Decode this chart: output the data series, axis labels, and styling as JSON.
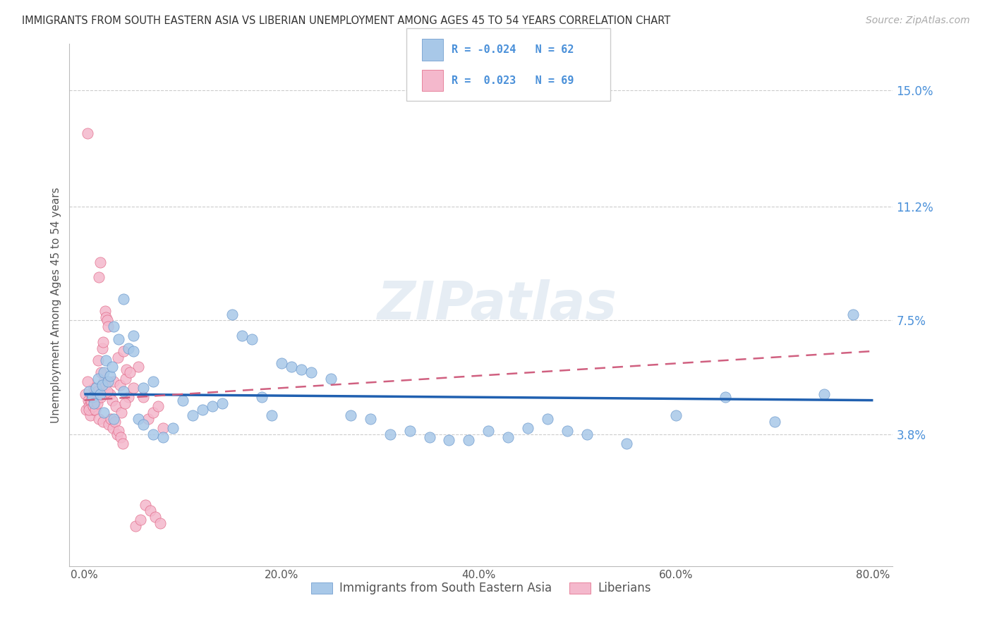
{
  "title": "IMMIGRANTS FROM SOUTH EASTERN ASIA VS LIBERIAN UNEMPLOYMENT AMONG AGES 45 TO 54 YEARS CORRELATION CHART",
  "source": "Source: ZipAtlas.com",
  "ylabel": "Unemployment Among Ages 45 to 54 years",
  "xticklabels": [
    "0.0%",
    "20.0%",
    "40.0%",
    "60.0%",
    "80.0%"
  ],
  "xticks": [
    0.0,
    20.0,
    40.0,
    60.0,
    80.0
  ],
  "ytick_labels": [
    "3.8%",
    "7.5%",
    "11.2%",
    "15.0%"
  ],
  "ytick_vals": [
    3.8,
    7.5,
    11.2,
    15.0
  ],
  "ymin": -0.5,
  "ymax": 16.5,
  "xmin": -1.5,
  "xmax": 82.0,
  "blue_label": "Immigrants from South Eastern Asia",
  "pink_label": "Liberians",
  "blue_R": -0.024,
  "blue_N": 62,
  "pink_R": 0.023,
  "pink_N": 69,
  "blue_color": "#a8c8e8",
  "pink_color": "#f4b8cc",
  "blue_edge_color": "#6090c8",
  "pink_edge_color": "#e06080",
  "blue_trend_color": "#2060b0",
  "pink_trend_color": "#d06080",
  "watermark": "ZIPatlas",
  "blue_trend_x0": 0.0,
  "blue_trend_y0": 5.1,
  "blue_trend_x1": 80.0,
  "blue_trend_y1": 4.9,
  "pink_trend_x0": 0.0,
  "pink_trend_y0": 4.9,
  "pink_trend_x1": 80.0,
  "pink_trend_y1": 6.5,
  "blue_scatter_x": [
    0.5,
    0.8,
    1.0,
    1.2,
    1.4,
    1.6,
    1.8,
    2.0,
    2.2,
    2.4,
    2.6,
    2.8,
    3.0,
    3.5,
    4.0,
    4.5,
    5.0,
    5.5,
    6.0,
    7.0,
    8.0,
    9.0,
    10.0,
    11.0,
    12.0,
    13.0,
    14.0,
    15.0,
    16.0,
    17.0,
    18.0,
    19.0,
    20.0,
    21.0,
    22.0,
    23.0,
    25.0,
    27.0,
    29.0,
    31.0,
    33.0,
    35.0,
    37.0,
    39.0,
    41.0,
    43.0,
    45.0,
    47.0,
    49.0,
    51.0,
    55.0,
    60.0,
    65.0,
    70.0,
    75.0,
    78.0,
    2.0,
    3.0,
    4.0,
    5.0,
    6.0,
    7.0
  ],
  "blue_scatter_y": [
    5.2,
    5.0,
    4.8,
    5.3,
    5.6,
    5.1,
    5.4,
    5.8,
    6.2,
    5.5,
    5.7,
    6.0,
    7.3,
    6.9,
    8.2,
    6.6,
    7.0,
    4.3,
    4.1,
    3.8,
    3.7,
    4.0,
    4.9,
    4.4,
    4.6,
    4.7,
    4.8,
    7.7,
    7.0,
    6.9,
    5.0,
    4.4,
    6.1,
    6.0,
    5.9,
    5.8,
    5.6,
    4.4,
    4.3,
    3.8,
    3.9,
    3.7,
    3.6,
    3.6,
    3.9,
    3.7,
    4.0,
    4.3,
    3.9,
    3.8,
    3.5,
    4.4,
    5.0,
    4.2,
    5.1,
    7.7,
    4.5,
    4.3,
    5.2,
    6.5,
    5.3,
    5.5
  ],
  "pink_scatter_x": [
    0.1,
    0.2,
    0.3,
    0.4,
    0.5,
    0.6,
    0.7,
    0.8,
    0.9,
    1.0,
    1.1,
    1.2,
    1.3,
    1.4,
    1.5,
    1.6,
    1.7,
    1.8,
    1.9,
    2.0,
    2.1,
    2.2,
    2.3,
    2.4,
    2.6,
    2.8,
    3.0,
    3.2,
    3.4,
    3.6,
    3.8,
    4.0,
    4.2,
    4.5,
    5.0,
    5.5,
    6.0,
    6.5,
    7.0,
    7.5,
    8.0,
    0.3,
    0.5,
    0.7,
    0.9,
    1.1,
    1.3,
    1.5,
    1.7,
    1.9,
    2.1,
    2.3,
    2.5,
    2.7,
    2.9,
    3.1,
    3.3,
    3.5,
    3.7,
    3.9,
    4.1,
    4.3,
    4.6,
    5.2,
    5.7,
    6.2,
    6.7,
    7.2,
    7.7
  ],
  "pink_scatter_y": [
    5.1,
    4.6,
    13.6,
    4.9,
    4.7,
    4.4,
    4.8,
    5.0,
    4.6,
    5.3,
    5.1,
    4.9,
    5.2,
    6.2,
    8.9,
    9.4,
    5.8,
    6.6,
    6.8,
    5.5,
    7.8,
    7.6,
    7.5,
    7.3,
    5.1,
    4.9,
    5.5,
    4.7,
    6.3,
    5.4,
    4.5,
    6.5,
    5.6,
    5.0,
    5.3,
    6.0,
    5.0,
    4.3,
    4.5,
    4.7,
    4.0,
    5.5,
    4.6,
    4.9,
    4.7,
    4.6,
    4.8,
    4.3,
    5.0,
    4.2,
    5.4,
    5.2,
    4.1,
    4.3,
    4.0,
    4.2,
    3.8,
    3.9,
    3.7,
    3.5,
    4.8,
    5.9,
    5.8,
    0.8,
    1.0,
    1.5,
    1.3,
    1.1,
    0.9
  ]
}
